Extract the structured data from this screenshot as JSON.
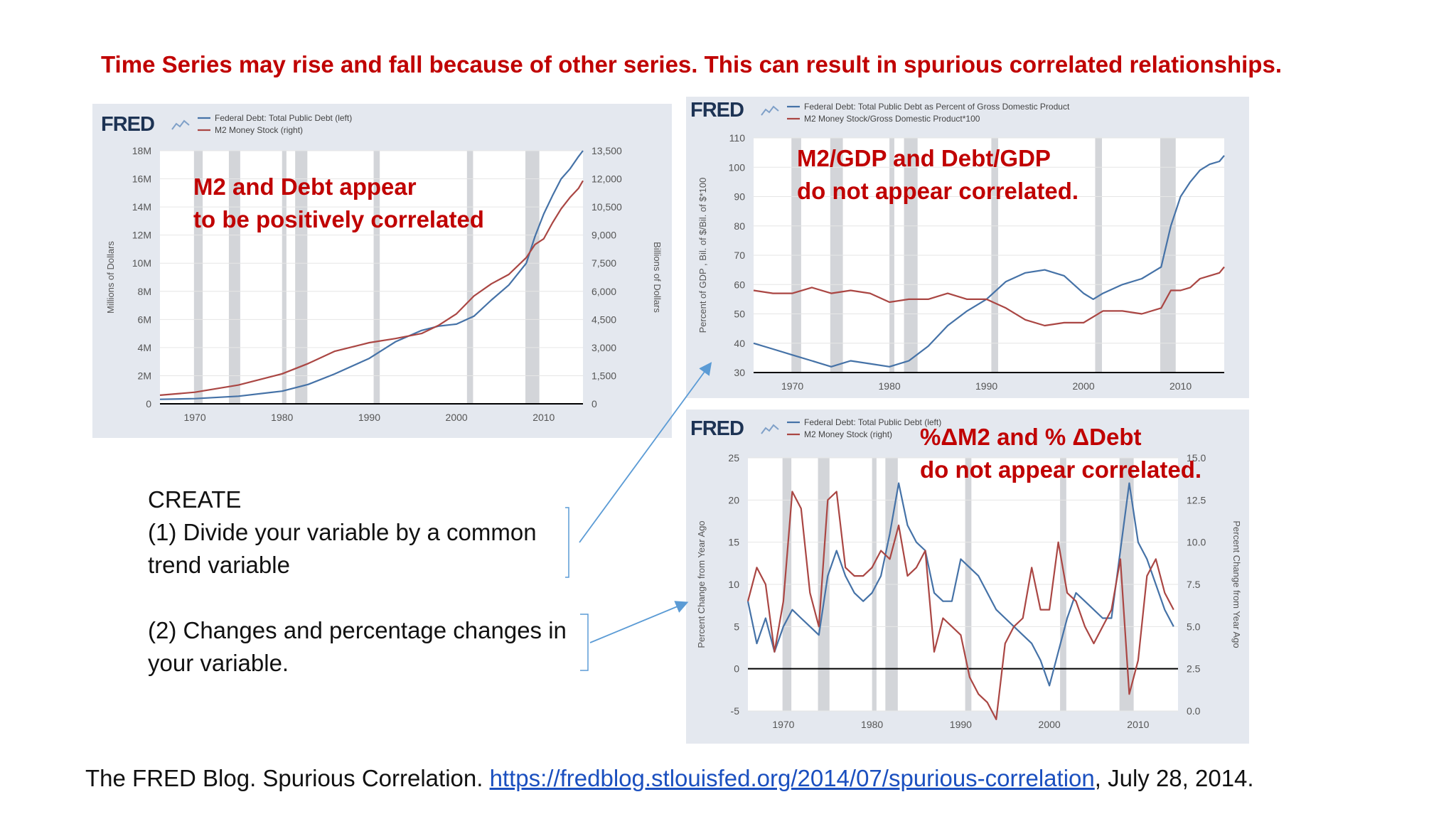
{
  "headline": "Time Series may rise and fall because of other series.  This can result in spurious correlated relationships.",
  "create_box": {
    "title": "CREATE",
    "line1": "(1) Divide your variable by a common",
    "line2": "trend variable",
    "line3": "(2) Changes and percentage changes in",
    "line4": "your variable."
  },
  "citation": {
    "prefix": "The FRED Blog. Spurious Correlation. ",
    "link": "https://fredblog.stlouisfed.org/2014/07/spurious-correlation",
    "suffix": ", July 28, 2014."
  },
  "colors": {
    "blue": "#4572a7",
    "red": "#aa4643",
    "recession": "#d3d5d9",
    "annotation": "#c00000",
    "arrow": "#5b9bd5"
  },
  "chart_data": [
    {
      "id": "c1",
      "type": "line",
      "logo": "FRED",
      "annotation": [
        "M2 and Debt appear",
        "to be positively correlated"
      ],
      "x_ticks": [
        "1970",
        "1980",
        "1990",
        "2000",
        "2010"
      ],
      "x_range": [
        1966,
        2014.5
      ],
      "ylabel": "Millions of Dollars",
      "ylim": [
        0,
        18000000
      ],
      "y_ticks": [
        "0",
        "2M",
        "4M",
        "6M",
        "8M",
        "10M",
        "12M",
        "14M",
        "16M",
        "18M"
      ],
      "y2label": "Billions of Dollars",
      "y2lim": [
        0,
        13500
      ],
      "y2_ticks": [
        "0",
        "1,500",
        "3,000",
        "4,500",
        "6,000",
        "7,500",
        "9,000",
        "10,500",
        "12,000",
        "13,500"
      ],
      "series": [
        {
          "name": "Federal Debt: Total Public Debt (left)",
          "color": "blue",
          "axis": "left",
          "x": [
            1966,
            1970,
            1975,
            1980,
            1983,
            1986,
            1990,
            1993,
            1996,
            1998,
            2000,
            2002,
            2004,
            2006,
            2008,
            2009,
            2010,
            2011,
            2012,
            2013,
            2014,
            2014.5
          ],
          "y": [
            320000,
            370000,
            540000,
            900000,
            1380000,
            2120000,
            3230000,
            4410000,
            5220000,
            5530000,
            5670000,
            6230000,
            7380000,
            8450000,
            10000000,
            11900000,
            13500000,
            14800000,
            16000000,
            16700000,
            17600000,
            18000000
          ]
        },
        {
          "name": "M2 Money Stock (right)",
          "color": "red",
          "axis": "right",
          "x": [
            1966,
            1970,
            1975,
            1980,
            1983,
            1986,
            1990,
            1993,
            1996,
            1998,
            2000,
            2002,
            2004,
            2006,
            2008,
            2009,
            2010,
            2011,
            2012,
            2013,
            2014,
            2014.5
          ],
          "y": [
            460,
            620,
            1000,
            1600,
            2150,
            2800,
            3260,
            3480,
            3750,
            4200,
            4800,
            5750,
            6400,
            6900,
            7800,
            8500,
            8800,
            9650,
            10400,
            11000,
            11500,
            11900
          ]
        }
      ]
    },
    {
      "id": "c2",
      "type": "line",
      "logo": "FRED",
      "annotation": [
        "M2/GDP and Debt/GDP",
        "do not appear correlated."
      ],
      "x_ticks": [
        "1970",
        "1980",
        "1990",
        "2000",
        "2010"
      ],
      "x_range": [
        1966,
        2014.5
      ],
      "ylabel": "Percent of GDP , Bil. of $/Bil. of $*100",
      "ylim": [
        30,
        110
      ],
      "y_ticks": [
        "30",
        "40",
        "50",
        "60",
        "70",
        "80",
        "90",
        "100",
        "110"
      ],
      "series": [
        {
          "name": "Federal Debt: Total Public Debt as Percent of Gross Domestic Product",
          "color": "blue",
          "x": [
            1966,
            1968,
            1970,
            1972,
            1974,
            1976,
            1978,
            1980,
            1982,
            1984,
            1986,
            1988,
            1990,
            1992,
            1994,
            1996,
            1998,
            2000,
            2001,
            2002,
            2004,
            2006,
            2008,
            2009,
            2010,
            2011,
            2012,
            2013,
            2014,
            2014.5
          ],
          "y": [
            40,
            38,
            36,
            34,
            32,
            34,
            33,
            32,
            34,
            39,
            46,
            51,
            55,
            61,
            64,
            65,
            63,
            57,
            55,
            57,
            60,
            62,
            66,
            80,
            90,
            95,
            99,
            101,
            102,
            104
          ]
        },
        {
          "name": "M2 Money Stock/Gross Domestic Product*100",
          "color": "red",
          "x": [
            1966,
            1968,
            1970,
            1972,
            1974,
            1976,
            1978,
            1980,
            1982,
            1984,
            1986,
            1988,
            1990,
            1992,
            1994,
            1996,
            1998,
            2000,
            2002,
            2004,
            2006,
            2008,
            2009,
            2010,
            2011,
            2012,
            2013,
            2014,
            2014.5
          ],
          "y": [
            58,
            57,
            57,
            59,
            57,
            58,
            57,
            54,
            55,
            55,
            57,
            55,
            55,
            52,
            48,
            46,
            47,
            47,
            51,
            51,
            50,
            52,
            58,
            58,
            59,
            62,
            63,
            64,
            66
          ]
        }
      ]
    },
    {
      "id": "c3",
      "type": "line",
      "logo": "FRED",
      "annotation": [
        "%ΔM2 and % ΔDebt",
        "do not appear correlated."
      ],
      "x_ticks": [
        "1970",
        "1980",
        "1990",
        "2000",
        "2010"
      ],
      "x_range": [
        1966,
        2014.5
      ],
      "ylabel": "Percent Change from Year Ago",
      "ylim": [
        -5,
        25
      ],
      "y_ticks": [
        "-5",
        "0",
        "5",
        "10",
        "15",
        "20",
        "25"
      ],
      "y2label": "Percent Change from Year Ago",
      "y2lim": [
        0,
        15
      ],
      "y2_ticks": [
        "0.0",
        "2.5",
        "5.0",
        "7.5",
        "10.0",
        "12.5",
        "15.0"
      ],
      "series": [
        {
          "name": "Federal Debt: Total Public Debt (left)",
          "color": "blue",
          "axis": "left",
          "x": [
            1966,
            1967,
            1968,
            1969,
            1970,
            1971,
            1972,
            1973,
            1974,
            1975,
            1976,
            1977,
            1978,
            1979,
            1980,
            1981,
            1982,
            1983,
            1984,
            1985,
            1986,
            1987,
            1988,
            1989,
            1990,
            1991,
            1992,
            1993,
            1994,
            1995,
            1996,
            1997,
            1998,
            1999,
            2000,
            2001,
            2002,
            2003,
            2004,
            2005,
            2006,
            2007,
            2008,
            2009,
            2010,
            2011,
            2012,
            2013,
            2014
          ],
          "y": [
            8,
            3,
            6,
            2,
            5,
            7,
            6,
            5,
            4,
            11,
            14,
            11,
            9,
            8,
            9,
            11,
            16,
            22,
            17,
            15,
            14,
            9,
            8,
            8,
            13,
            12,
            11,
            9,
            7,
            6,
            5,
            4,
            3,
            1,
            -2,
            2,
            6,
            9,
            8,
            7,
            6,
            6,
            14,
            22,
            15,
            13,
            10,
            7,
            5
          ]
        },
        {
          "name": "M2 Money Stock (right)",
          "color": "red",
          "axis": "right",
          "x": [
            1966,
            1967,
            1968,
            1969,
            1970,
            1971,
            1972,
            1973,
            1974,
            1975,
            1976,
            1977,
            1978,
            1979,
            1980,
            1981,
            1982,
            1983,
            1984,
            1985,
            1986,
            1987,
            1988,
            1989,
            1990,
            1991,
            1992,
            1993,
            1994,
            1995,
            1996,
            1997,
            1998,
            1999,
            2000,
            2001,
            2002,
            2003,
            2004,
            2005,
            2006,
            2007,
            2008,
            2009,
            2010,
            2011,
            2012,
            2013,
            2014
          ],
          "y": [
            6.5,
            8.5,
            7.5,
            3.5,
            6.5,
            13,
            12,
            7,
            5,
            12.5,
            13,
            8.5,
            8,
            8,
            8.5,
            9.5,
            9,
            11,
            8,
            8.5,
            9.5,
            3.5,
            5.5,
            5,
            4.5,
            2,
            1,
            0.5,
            -0.5,
            4,
            5,
            5.5,
            8.5,
            6,
            6,
            10,
            7,
            6.5,
            5,
            4,
            5,
            6,
            9,
            1,
            3,
            8,
            9,
            7,
            6
          ]
        }
      ]
    }
  ]
}
